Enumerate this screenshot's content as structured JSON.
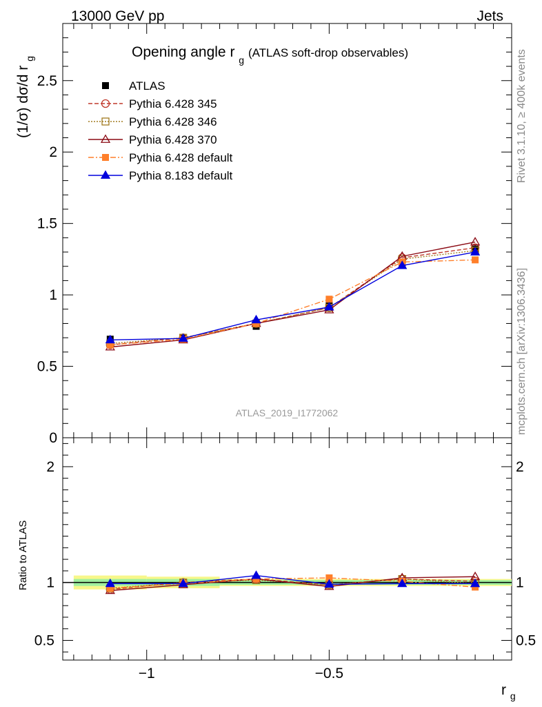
{
  "header": {
    "energy_label": "13000 GeV pp",
    "process_label": "Jets"
  },
  "side_labels": {
    "rivet": "Rivet 3.1.10, ≥ 400k events",
    "mcplots": "mcplots.cern.ch [arXiv:1306.3436]"
  },
  "chart_data": [
    {
      "type": "line",
      "panel": "main",
      "title_main": "Opening angle r",
      "title_sub": "g",
      "title_note": "(ATLAS soft-drop observables)",
      "ylabel": "(1/σ) dσ/d r",
      "ylabel_sub": "g",
      "watermark": "ATLAS_2019_I1772062",
      "ylim": [
        0,
        2.9
      ],
      "xlim": [
        -1.23,
        0.0
      ],
      "yticks": [
        0,
        0.5,
        1,
        1.5,
        2,
        2.5
      ],
      "ytick_labels": [
        "0",
        "0.5",
        "1",
        "1.5",
        "2",
        "2.5"
      ],
      "legend_position": "top-left",
      "x": [
        -1.1,
        -0.9,
        -0.7,
        -0.5,
        -0.3,
        -0.1
      ],
      "data": {
        "name": "ATLAS",
        "values": [
          0.69,
          0.7,
          0.78,
          0.93,
          1.22,
          1.32
        ],
        "errors": [
          0.02,
          0.02,
          0.02,
          0.03,
          0.03,
          0.03
        ],
        "color": "#000000"
      },
      "series": [
        {
          "name": "Pythia 6.428 345",
          "values": [
            0.65,
            0.7,
            0.8,
            0.91,
            1.26,
            1.33
          ],
          "color": "#c0392b",
          "dash": "6,3",
          "marker": "circle-open"
        },
        {
          "name": "Pythia 6.428 346",
          "values": [
            0.66,
            0.7,
            0.8,
            0.91,
            1.25,
            1.31
          ],
          "color": "#a07a1f",
          "dash": "2,2",
          "marker": "square-open"
        },
        {
          "name": "Pythia 6.428 370",
          "values": [
            0.635,
            0.685,
            0.8,
            0.895,
            1.27,
            1.37
          ],
          "color": "#8b0a14",
          "dash": "",
          "marker": "triangle-open"
        },
        {
          "name": "Pythia 6.428 default",
          "values": [
            0.65,
            0.69,
            0.8,
            0.97,
            1.23,
            1.245
          ],
          "color": "#ff7f2a",
          "dash": "8,3,2,3",
          "marker": "square-filled"
        },
        {
          "name": "Pythia 8.183 default",
          "values": [
            0.685,
            0.695,
            0.825,
            0.915,
            1.205,
            1.3
          ],
          "color": "#0000dd",
          "dash": "",
          "marker": "triangle-filled"
        }
      ]
    },
    {
      "type": "line",
      "panel": "ratio",
      "ylabel": "Ratio to ATLAS",
      "xlabel": "r",
      "xlabel_sub": "g",
      "ylim": [
        0.33,
        2.25
      ],
      "xlim": [
        -1.23,
        0.0
      ],
      "yticks": [
        0.5,
        1,
        2
      ],
      "ytick_labels": [
        "0.5",
        "1",
        "2"
      ],
      "xticks": [
        -1,
        -0.5
      ],
      "xtick_labels": [
        "−1",
        "−0.5"
      ],
      "band": {
        "x_edges": [
          -1.2,
          -1.0,
          -0.8,
          -0.6,
          -0.4,
          -0.2,
          0.0
        ],
        "inner": [
          0.03,
          0.03,
          0.02,
          0.02,
          0.02,
          0.02
        ],
        "outer": [
          0.06,
          0.05,
          0.03,
          0.03,
          0.03,
          0.03
        ]
      },
      "x": [
        -1.1,
        -0.9,
        -0.7,
        -0.5,
        -0.3,
        -0.1
      ],
      "series": [
        {
          "name": "Pythia 6.428 345",
          "values": [
            0.94,
            1.0,
            1.03,
            0.98,
            1.03,
            1.01
          ],
          "color": "#c0392b",
          "dash": "6,3",
          "marker": "circle-open"
        },
        {
          "name": "Pythia 6.428 346",
          "values": [
            0.95,
            1.0,
            1.02,
            0.98,
            1.03,
            0.99
          ],
          "color": "#a07a1f",
          "dash": "2,2",
          "marker": "square-open"
        },
        {
          "name": "Pythia 6.428 370",
          "values": [
            0.93,
            0.98,
            1.03,
            0.965,
            1.04,
            1.05
          ],
          "color": "#8b0a14",
          "dash": "",
          "marker": "triangle-open"
        },
        {
          "name": "Pythia 6.428 default",
          "values": [
            0.95,
            0.99,
            1.03,
            1.04,
            1.01,
            0.96
          ],
          "color": "#ff7f2a",
          "dash": "8,3,2,3",
          "marker": "square-filled"
        },
        {
          "name": "Pythia 8.183 default",
          "values": [
            0.99,
            0.99,
            1.06,
            0.985,
            0.99,
            0.99
          ],
          "color": "#0000dd",
          "dash": "",
          "marker": "triangle-filled"
        }
      ]
    }
  ]
}
